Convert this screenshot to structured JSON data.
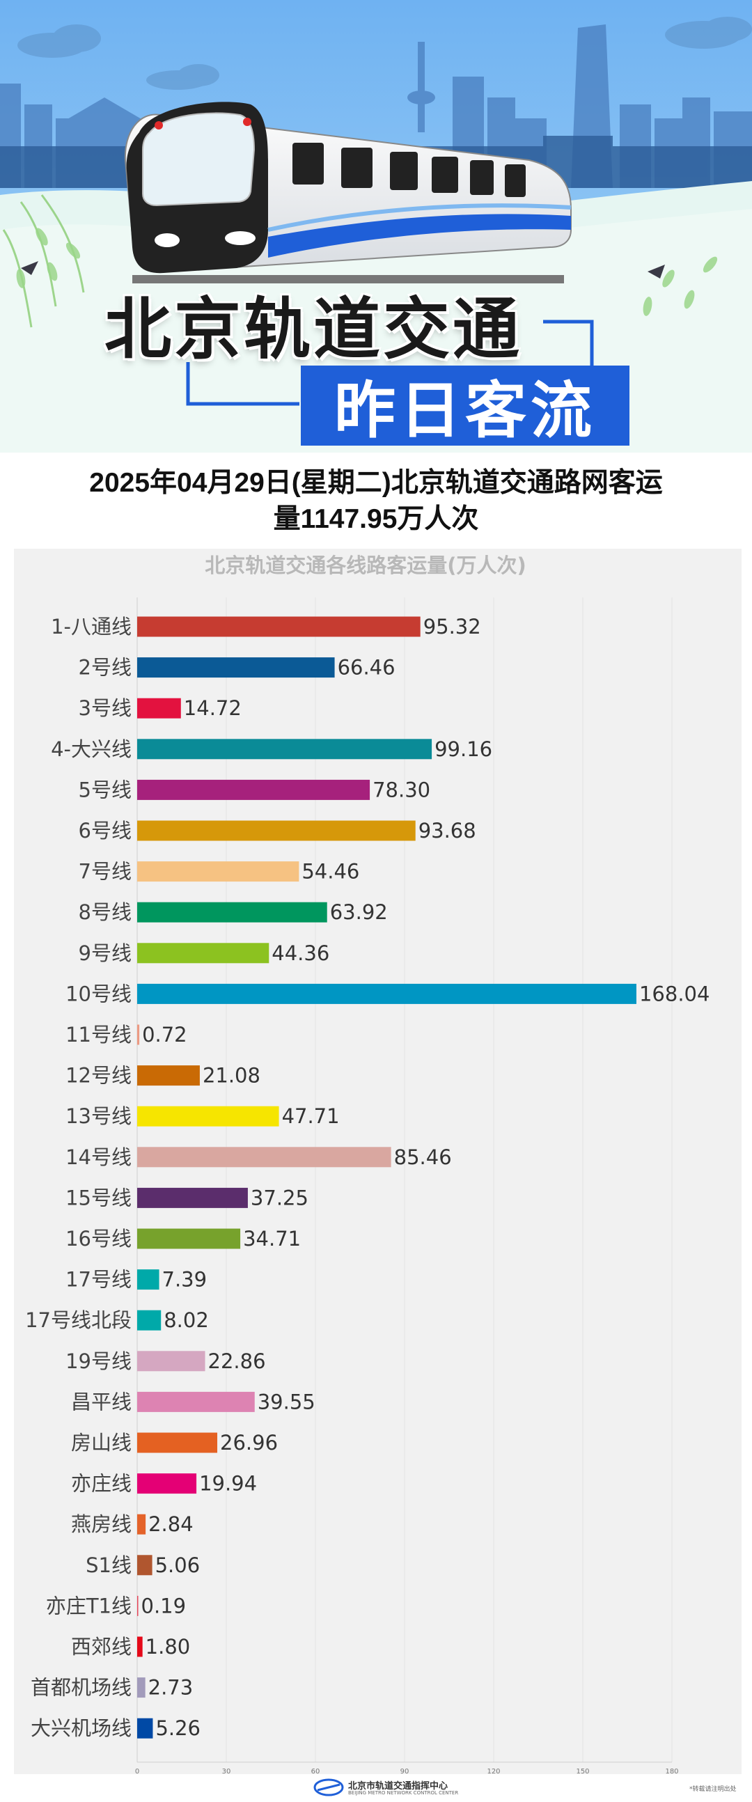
{
  "header": {
    "title_main": "北京轨道交通",
    "title_sub": "昨日客流"
  },
  "headline": {
    "line1": "2025年04月29日(星期二)北京轨道交通路网客运",
    "line2": "量1147.95万人次"
  },
  "chart_data": {
    "type": "bar",
    "orientation": "horizontal",
    "title": "北京轨道交通各线路客运量(万人次)",
    "xlabel": "",
    "ylabel": "",
    "xlim": [
      0,
      180
    ],
    "ticks": [
      0,
      30,
      60,
      90,
      120,
      150,
      180
    ],
    "grid": true,
    "categories": [
      "1-八通线",
      "2号线",
      "3号线",
      "4-大兴线",
      "5号线",
      "6号线",
      "7号线",
      "8号线",
      "9号线",
      "10号线",
      "11号线",
      "12号线",
      "13号线",
      "14号线",
      "15号线",
      "16号线",
      "17号线",
      "17号线北段",
      "19号线",
      "昌平线",
      "房山线",
      "亦庄线",
      "燕房线",
      "S1线",
      "亦庄T1线",
      "西郊线",
      "首都机场线",
      "大兴机场线"
    ],
    "values": [
      95.32,
      66.46,
      14.72,
      99.16,
      78.3,
      93.68,
      54.46,
      63.92,
      44.36,
      168.04,
      0.72,
      21.08,
      47.71,
      85.46,
      37.25,
      34.71,
      7.39,
      8.02,
      22.86,
      39.55,
      26.96,
      19.94,
      2.84,
      5.06,
      0.19,
      1.8,
      2.73,
      5.26
    ],
    "value_labels": [
      "95.32",
      "66.46",
      "14.72",
      "99.16",
      "78.30",
      "93.68",
      "54.46",
      "63.92",
      "44.36",
      "168.04",
      "0.72",
      "21.08",
      "47.71",
      "85.46",
      "37.25",
      "34.71",
      "7.39",
      "8.02",
      "22.86",
      "39.55",
      "26.96",
      "19.94",
      "2.84",
      "5.06",
      "0.19",
      "1.80",
      "2.73",
      "5.26"
    ],
    "colors": [
      "#c63c31",
      "#0b5a96",
      "#e3123f",
      "#0a8b97",
      "#a6217c",
      "#d6980a",
      "#f6c282",
      "#00965e",
      "#8cc220",
      "#0096c3",
      "#ec9a83",
      "#c96a05",
      "#f6e500",
      "#d9a7a0",
      "#5b2d6c",
      "#77a22c",
      "#00a9a9",
      "#00a9a9",
      "#d5a7c1",
      "#dd83b2",
      "#e46122",
      "#e40075",
      "#e4632a",
      "#b0562f",
      "#e6475b",
      "#e50919",
      "#a29bbb",
      "#0049a5"
    ]
  },
  "footer": {
    "org_cn": "北京市轨道交通指挥中心",
    "org_en": "BEIJING METRO NETWORK CONTROL CENTER",
    "note": "*转载请注明出处"
  }
}
